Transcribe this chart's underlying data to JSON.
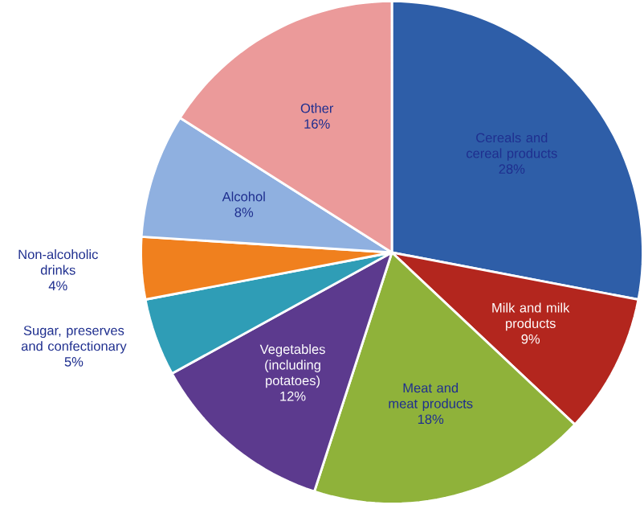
{
  "chart_data": {
    "type": "pie",
    "categories": [
      "Cereals and cereal products",
      "Milk and milk products",
      "Meat and meat products",
      "Vegetables (including potatoes)",
      "Sugar, preserves and confectionary",
      "Non-alcoholic drinks",
      "Alcohol",
      "Other"
    ],
    "values": [
      28,
      9,
      18,
      12,
      5,
      4,
      8,
      16
    ],
    "value_labels": [
      "28%",
      "9%",
      "18%",
      "12%",
      "5%",
      "4%",
      "8%",
      "16%"
    ],
    "colors": [
      "#2e5ea8",
      "#b3261e",
      "#8fb23a",
      "#5c3a8e",
      "#2f9db6",
      "#f0801e",
      "#8fb0e0",
      "#eb9a9a"
    ]
  }
}
